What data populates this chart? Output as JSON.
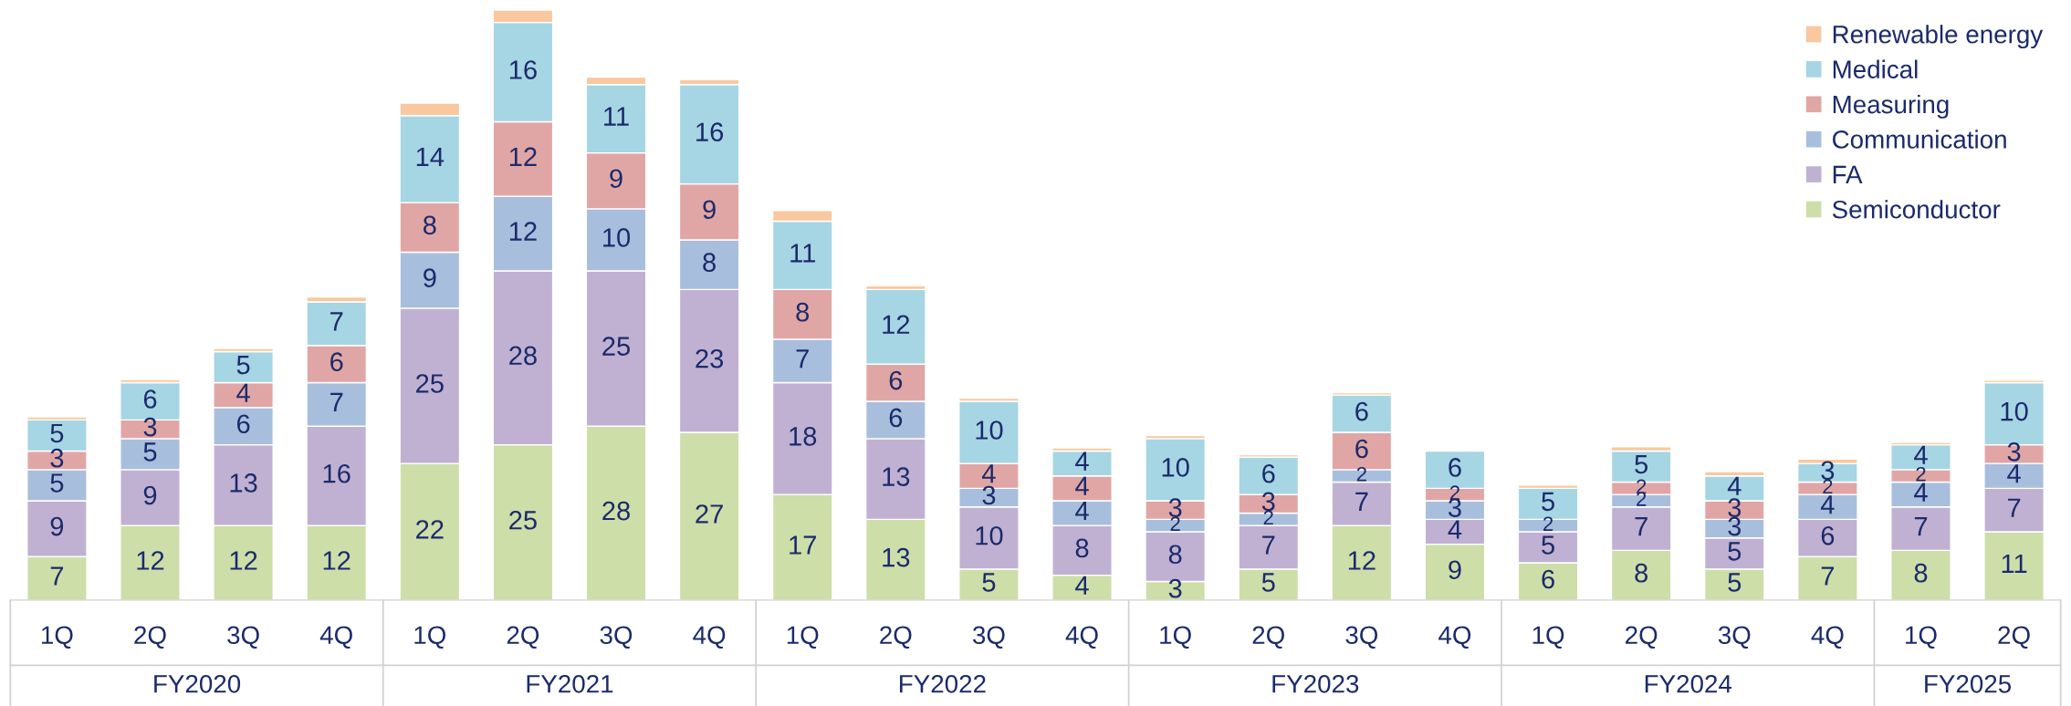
{
  "chart_data": {
    "type": "bar",
    "stacked": true,
    "data_labels": true,
    "legend": "top right",
    "grid": false,
    "categories": [
      "1Q",
      "2Q",
      "3Q",
      "4Q",
      "1Q",
      "2Q",
      "3Q",
      "4Q",
      "1Q",
      "2Q",
      "3Q",
      "4Q",
      "1Q",
      "2Q",
      "3Q",
      "4Q",
      "1Q",
      "2Q",
      "3Q",
      "4Q",
      "1Q",
      "2Q"
    ],
    "annotations": [
      "FY2020",
      "FY2021",
      "FY2022",
      "FY2023",
      "FY2024",
      "FY2025"
    ],
    "series": [
      {
        "name": "Semiconductor",
        "color": "#cddea9",
        "values": [
          7,
          12,
          12,
          12,
          22,
          25,
          28,
          27,
          17,
          13,
          5,
          4,
          3,
          5,
          12,
          9,
          6,
          8,
          5,
          7,
          8,
          11
        ]
      },
      {
        "name": "FA",
        "color": "#c0b1d2",
        "values": [
          9,
          9,
          13,
          16,
          25,
          28,
          25,
          23,
          18,
          13,
          10,
          8,
          8,
          7,
          7,
          4,
          5,
          7,
          5,
          6,
          7,
          7
        ]
      },
      {
        "name": "Communication",
        "color": "#a8bedd",
        "values": [
          5,
          5,
          6,
          7,
          9,
          12,
          10,
          8,
          7,
          6,
          3,
          4,
          2,
          2,
          2,
          3,
          2,
          2,
          3,
          4,
          4,
          4
        ]
      },
      {
        "name": "Measuring",
        "color": "#e0a6a5",
        "values": [
          3,
          3,
          4,
          6,
          8,
          12,
          9,
          9,
          8,
          6,
          4,
          4,
          3,
          3,
          6,
          2,
          0,
          2,
          3,
          2,
          2,
          3
        ],
        "value_labels": [
          "3",
          "3",
          "4",
          "6",
          "8",
          "12",
          "9",
          "9",
          "8",
          "6",
          "4",
          "4",
          "3",
          "3",
          "6",
          "2",
          null,
          "2",
          "3",
          "2",
          "2",
          "3"
        ]
      },
      {
        "name": "Medical",
        "color": "#a6d5e3",
        "values": [
          5,
          6,
          5,
          7,
          14,
          16,
          11,
          16,
          11,
          12,
          10,
          4,
          10,
          6,
          6,
          6,
          5,
          5,
          4,
          3,
          4,
          10
        ]
      },
      {
        "name": "Renewable energy",
        "color": "#f9c89f",
        "values": [
          0.5,
          0.5,
          0.5,
          0.8,
          2,
          2,
          1.2,
          0.8,
          1.7,
          0.6,
          0.5,
          0.5,
          0.5,
          0.4,
          0.4,
          null,
          0.5,
          0.7,
          0.7,
          0.7,
          0.4,
          0.4
        ],
        "value_labels": [
          null,
          null,
          null,
          null,
          null,
          null,
          null,
          null,
          null,
          null,
          null,
          null,
          null,
          null,
          null,
          null,
          null,
          null,
          null,
          null,
          null,
          null
        ]
      }
    ]
  }
}
